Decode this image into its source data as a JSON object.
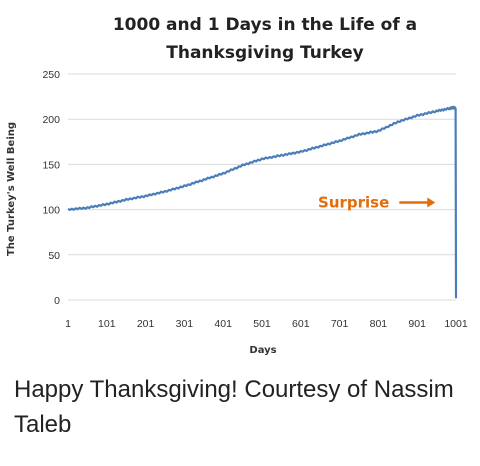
{
  "chart_data": {
    "type": "line",
    "title_lines": [
      "1000 and 1 Days in the Life of a",
      "Thanksgiving Turkey"
    ],
    "xlabel": "Days",
    "ylabel": "The Turkey's Well Being",
    "xlim": [
      1,
      1001
    ],
    "ylim": [
      0,
      250
    ],
    "x_ticks": [
      1,
      101,
      201,
      301,
      401,
      501,
      601,
      701,
      801,
      901,
      1001
    ],
    "y_ticks": [
      0,
      50,
      100,
      150,
      200,
      250
    ],
    "grid": true,
    "series": [
      {
        "color": "#4a7ebb",
        "points": [
          [
            1,
            100
          ],
          [
            51,
            102
          ],
          [
            101,
            106
          ],
          [
            151,
            111
          ],
          [
            201,
            115
          ],
          [
            251,
            120
          ],
          [
            301,
            126
          ],
          [
            351,
            133
          ],
          [
            401,
            140
          ],
          [
            451,
            149
          ],
          [
            501,
            156
          ],
          [
            551,
            160
          ],
          [
            601,
            164
          ],
          [
            651,
            170
          ],
          [
            701,
            176
          ],
          [
            751,
            183
          ],
          [
            801,
            187
          ],
          [
            851,
            197
          ],
          [
            901,
            204
          ],
          [
            951,
            209
          ],
          [
            986,
            212
          ],
          [
            994,
            213
          ],
          [
            1000,
            212
          ],
          [
            1001,
            2
          ]
        ]
      }
    ],
    "annotation": {
      "text": "Surprise",
      "color": "#e46c0a",
      "x": 860,
      "y": 109
    }
  },
  "caption": "Happy Thanksgiving! Courtesy of Nassim Taleb"
}
